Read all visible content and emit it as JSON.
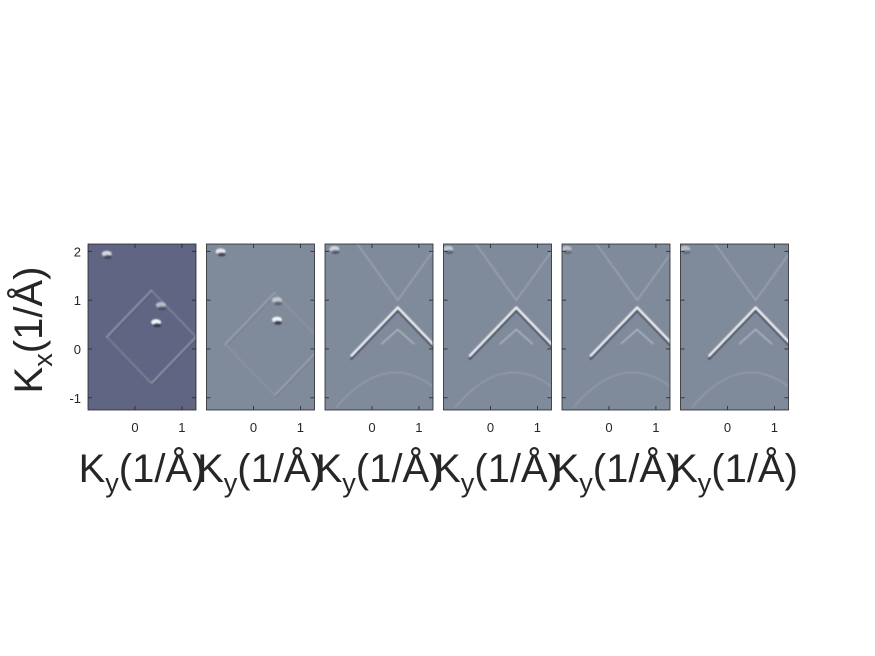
{
  "chart_data": {
    "type": "heatmap",
    "panel_count": 6,
    "ylabel": {
      "main": "K",
      "sub": "x",
      "unit": "(1/Å)"
    },
    "xlabel": {
      "main": "K",
      "sub": "y",
      "unit": "(1/Å)"
    },
    "ylim": [
      -1.25,
      2.15
    ],
    "xlim": [
      -1.0,
      1.3
    ],
    "yticks": [
      -1,
      0,
      1,
      2
    ],
    "xticks": [
      0,
      1
    ],
    "colormap": {
      "low": "#1f2a44",
      "mid": "#808c9e",
      "high": "#ffffff"
    },
    "panels": [
      {
        "background": "#5f6582",
        "features": [
          {
            "kind": "square",
            "center": [
              0.35,
              0.25
            ],
            "half_diag": 0.95,
            "strength": 0.5
          },
          {
            "kind": "bright_spot",
            "x": 0.45,
            "y": 0.55,
            "strength": 1.0
          },
          {
            "kind": "bright_spot",
            "x": 0.55,
            "y": 0.9,
            "strength": 0.6
          },
          {
            "kind": "bright_spot",
            "x": -0.6,
            "y": 1.95,
            "strength": 0.8
          }
        ]
      },
      {
        "background": "#7f8a9a",
        "features": [
          {
            "kind": "square",
            "center": [
              0.45,
              0.1
            ],
            "half_diag": 1.05,
            "strength": 0.35
          },
          {
            "kind": "bright_spot",
            "x": 0.5,
            "y": 0.6,
            "strength": 1.0
          },
          {
            "kind": "bright_spot",
            "x": 0.5,
            "y": 1.0,
            "strength": 0.6
          },
          {
            "kind": "bright_spot",
            "x": -0.7,
            "y": 2.0,
            "strength": 0.9
          }
        ]
      },
      {
        "background": "#7f8a9b",
        "features": [
          {
            "kind": "chevron",
            "apex": [
              0.55,
              0.85
            ],
            "spread": 1.0,
            "strength": 1.0
          },
          {
            "kind": "arc",
            "center": [
              0.5,
              -1.2
            ],
            "radius": 0.9,
            "strength": 0.3
          },
          {
            "kind": "bright_spot",
            "x": -0.8,
            "y": 2.05,
            "strength": 0.7
          }
        ]
      },
      {
        "background": "#7f8a9b",
        "features": [
          {
            "kind": "chevron",
            "apex": [
              0.55,
              0.85
            ],
            "spread": 1.0,
            "strength": 1.0
          },
          {
            "kind": "arc",
            "center": [
              0.5,
              -1.2
            ],
            "radius": 0.9,
            "strength": 0.3
          },
          {
            "kind": "bright_spot",
            "x": -0.9,
            "y": 2.05,
            "strength": 0.6
          }
        ]
      },
      {
        "background": "#7f8a9b",
        "features": [
          {
            "kind": "chevron",
            "apex": [
              0.6,
              0.85
            ],
            "spread": 1.0,
            "strength": 1.0
          },
          {
            "kind": "arc",
            "center": [
              0.5,
              -1.2
            ],
            "radius": 0.9,
            "strength": 0.3
          },
          {
            "kind": "bright_spot",
            "x": -0.9,
            "y": 2.05,
            "strength": 0.5
          }
        ]
      },
      {
        "background": "#7f8a9b",
        "features": [
          {
            "kind": "chevron",
            "apex": [
              0.6,
              0.85
            ],
            "spread": 1.0,
            "strength": 1.0
          },
          {
            "kind": "arc",
            "center": [
              0.5,
              -1.2
            ],
            "radius": 0.9,
            "strength": 0.3
          },
          {
            "kind": "bright_spot",
            "x": -0.9,
            "y": 2.05,
            "strength": 0.5
          }
        ]
      }
    ]
  }
}
